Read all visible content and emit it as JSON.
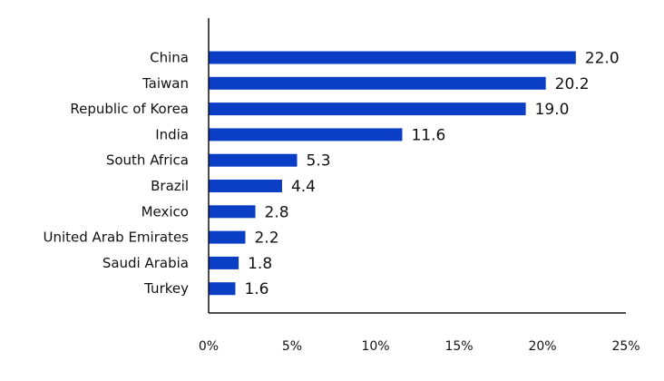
{
  "chart_data": {
    "type": "bar",
    "orientation": "horizontal",
    "categories": [
      "China",
      "Taiwan",
      "Republic of Korea",
      "India",
      "South Africa",
      "Brazil",
      "Mexico",
      "United Arab Emirates",
      "Saudi Arabia",
      "Turkey"
    ],
    "values": [
      22.0,
      20.2,
      19.0,
      11.6,
      5.3,
      4.4,
      2.8,
      2.2,
      1.8,
      1.6
    ],
    "value_labels": [
      "22.0",
      "20.2",
      "19.0",
      "11.6",
      "5.3",
      "4.4",
      "2.8",
      "2.2",
      "1.8",
      "1.6"
    ],
    "x_ticks": [
      "0%",
      "5%",
      "10%",
      "15%",
      "20%",
      "25%"
    ],
    "xlim": [
      0,
      25
    ],
    "title": "",
    "xlabel": "",
    "ylabel": "",
    "grid": false,
    "bar_color": "#0a3ec4"
  }
}
